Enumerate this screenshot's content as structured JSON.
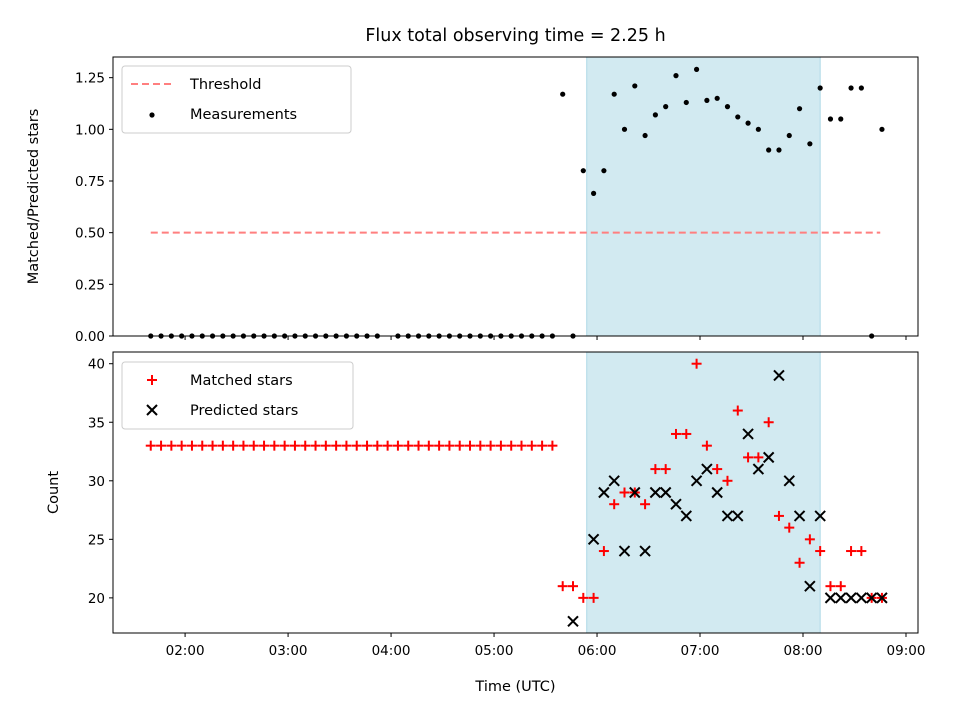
{
  "chart_data": [
    {
      "type": "scatter",
      "title": "Flux total observing time = 2.25 h",
      "ylabel": "Matched/Predicted stars",
      "xlabel": "",
      "xlim": [
        "01:18",
        "09:07"
      ],
      "ylim": [
        0,
        1.35
      ],
      "yticks": [
        "0.00",
        "0.25",
        "0.50",
        "0.75",
        "1.00",
        "1.25"
      ],
      "legend": {
        "position": "top-left",
        "entries": [
          "Threshold",
          "Measurements"
        ]
      },
      "shaded_interval": [
        "05:54",
        "08:10"
      ],
      "threshold": {
        "name": "Threshold",
        "y": 0.5,
        "x_range": [
          "01:40",
          "08:45"
        ],
        "color": "#ff7f7f"
      },
      "series": [
        {
          "name": "Measurements",
          "color": "#000000",
          "x": [
            "01:40",
            "01:46",
            "01:52",
            "01:58",
            "02:04",
            "02:10",
            "02:16",
            "02:22",
            "02:28",
            "02:34",
            "02:40",
            "02:46",
            "02:52",
            "02:58",
            "03:04",
            "03:10",
            "03:16",
            "03:22",
            "03:28",
            "03:34",
            "03:40",
            "03:46",
            "03:52",
            "04:04",
            "04:10",
            "04:16",
            "04:22",
            "04:28",
            "04:34",
            "04:40",
            "04:46",
            "04:52",
            "04:58",
            "05:04",
            "05:10",
            "05:16",
            "05:22",
            "05:28",
            "05:34",
            "05:40",
            "05:46",
            "05:52",
            "05:58",
            "06:04",
            "06:10",
            "06:16",
            "06:22",
            "06:28",
            "06:34",
            "06:40",
            "06:46",
            "06:52",
            "06:58",
            "07:04",
            "07:10",
            "07:16",
            "07:22",
            "07:28",
            "07:34",
            "07:40",
            "07:46",
            "07:52",
            "07:58",
            "08:04",
            "08:10",
            "08:16",
            "08:22",
            "08:28",
            "08:34",
            "08:40",
            "08:46"
          ],
          "y": [
            0,
            0,
            0,
            0,
            0,
            0,
            0,
            0,
            0,
            0,
            0,
            0,
            0,
            0,
            0,
            0,
            0,
            0,
            0,
            0,
            0,
            0,
            0,
            0,
            0,
            0,
            0,
            0,
            0,
            0,
            0,
            0,
            0,
            0,
            0,
            0,
            0,
            0,
            0,
            1.17,
            0,
            0.8,
            0.69,
            0.8,
            1.17,
            1.0,
            1.21,
            0.97,
            1.07,
            1.11,
            1.26,
            1.13,
            1.29,
            1.14,
            1.15,
            1.11,
            1.06,
            1.03,
            1.0,
            0.9,
            0.9,
            0.97,
            1.1,
            0.93,
            1.2,
            1.05,
            1.05,
            1.2,
            1.2,
            0,
            1.0
          ]
        }
      ]
    },
    {
      "type": "scatter",
      "title": "",
      "ylabel": "Count",
      "xlabel": "Time (UTC)",
      "xlim": [
        "01:18",
        "09:07"
      ],
      "ylim": [
        17,
        41
      ],
      "yticks": [
        "20",
        "25",
        "30",
        "35",
        "40"
      ],
      "xticks": [
        "02:00",
        "03:00",
        "04:00",
        "05:00",
        "06:00",
        "07:00",
        "08:00",
        "09:00"
      ],
      "legend": {
        "position": "top-left",
        "entries": [
          "Matched stars",
          "Predicted stars"
        ]
      },
      "shaded_interval": [
        "05:54",
        "08:10"
      ],
      "series": [
        {
          "name": "Matched stars",
          "marker": "+",
          "color": "#ff0000",
          "x": [
            "01:40",
            "01:46",
            "01:52",
            "01:58",
            "02:04",
            "02:10",
            "02:16",
            "02:22",
            "02:28",
            "02:34",
            "02:40",
            "02:46",
            "02:52",
            "02:58",
            "03:04",
            "03:10",
            "03:16",
            "03:22",
            "03:28",
            "03:34",
            "03:40",
            "03:46",
            "03:52",
            "03:58",
            "04:04",
            "04:10",
            "04:16",
            "04:22",
            "04:28",
            "04:34",
            "04:40",
            "04:46",
            "04:52",
            "04:58",
            "05:04",
            "05:10",
            "05:16",
            "05:22",
            "05:28",
            "05:34",
            "05:40",
            "05:46",
            "05:52",
            "05:58",
            "06:04",
            "06:10",
            "06:16",
            "06:22",
            "06:28",
            "06:34",
            "06:40",
            "06:46",
            "06:52",
            "06:58",
            "07:04",
            "07:10",
            "07:16",
            "07:22",
            "07:28",
            "07:34",
            "07:40",
            "07:46",
            "07:52",
            "07:58",
            "08:04",
            "08:10",
            "08:16",
            "08:22",
            "08:28",
            "08:34",
            "08:40",
            "08:46"
          ],
          "y": [
            33,
            33,
            33,
            33,
            33,
            33,
            33,
            33,
            33,
            33,
            33,
            33,
            33,
            33,
            33,
            33,
            33,
            33,
            33,
            33,
            33,
            33,
            33,
            33,
            33,
            33,
            33,
            33,
            33,
            33,
            33,
            33,
            33,
            33,
            33,
            33,
            33,
            33,
            33,
            33,
            21,
            21,
            20,
            20,
            24,
            28,
            29,
            29,
            28,
            31,
            31,
            34,
            34,
            40,
            33,
            31,
            30,
            36,
            32,
            32,
            35,
            27,
            26,
            23,
            25,
            24,
            21,
            21,
            24,
            24,
            20,
            20
          ]
        },
        {
          "name": "Predicted stars",
          "marker": "x",
          "color": "#000000",
          "x": [
            "05:46",
            "05:58",
            "06:04",
            "06:10",
            "06:16",
            "06:22",
            "06:28",
            "06:34",
            "06:40",
            "06:46",
            "06:52",
            "06:58",
            "07:04",
            "07:10",
            "07:16",
            "07:22",
            "07:28",
            "07:34",
            "07:40",
            "07:46",
            "07:52",
            "07:58",
            "08:04",
            "08:10",
            "08:16",
            "08:22",
            "08:28",
            "08:34",
            "08:40",
            "08:46"
          ],
          "y": [
            18,
            25,
            29,
            30,
            24,
            29,
            24,
            29,
            29,
            28,
            27,
            30,
            31,
            29,
            27,
            27,
            34,
            31,
            32,
            39,
            30,
            27,
            21,
            27,
            20,
            20,
            20,
            20,
            20,
            20
          ]
        }
      ]
    }
  ]
}
